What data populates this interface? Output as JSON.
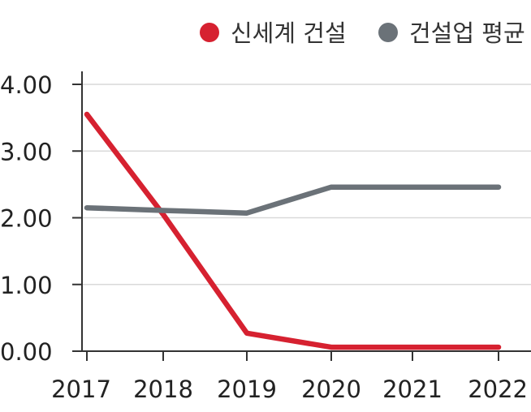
{
  "chart_data": {
    "type": "line",
    "categories": [
      "2017",
      "2018",
      "2019",
      "2020",
      "2021",
      "2022"
    ],
    "series": [
      {
        "name": "신세계 건설",
        "color": "#d62130",
        "values": [
          3.55,
          2.05,
          0.27,
          0.06,
          0.06,
          0.06
        ]
      },
      {
        "name": "건설업 평균",
        "color": "#6b7278",
        "values": [
          2.15,
          2.11,
          2.07,
          2.46,
          2.46,
          2.46
        ]
      }
    ],
    "yticks": [
      "0.00",
      "1.00",
      "2.00",
      "3.00",
      "4.00"
    ],
    "ylim": [
      0,
      4
    ],
    "grid": true,
    "legend": "top-right",
    "axis_color": "#333333",
    "grid_color": "#d9d9d9"
  }
}
